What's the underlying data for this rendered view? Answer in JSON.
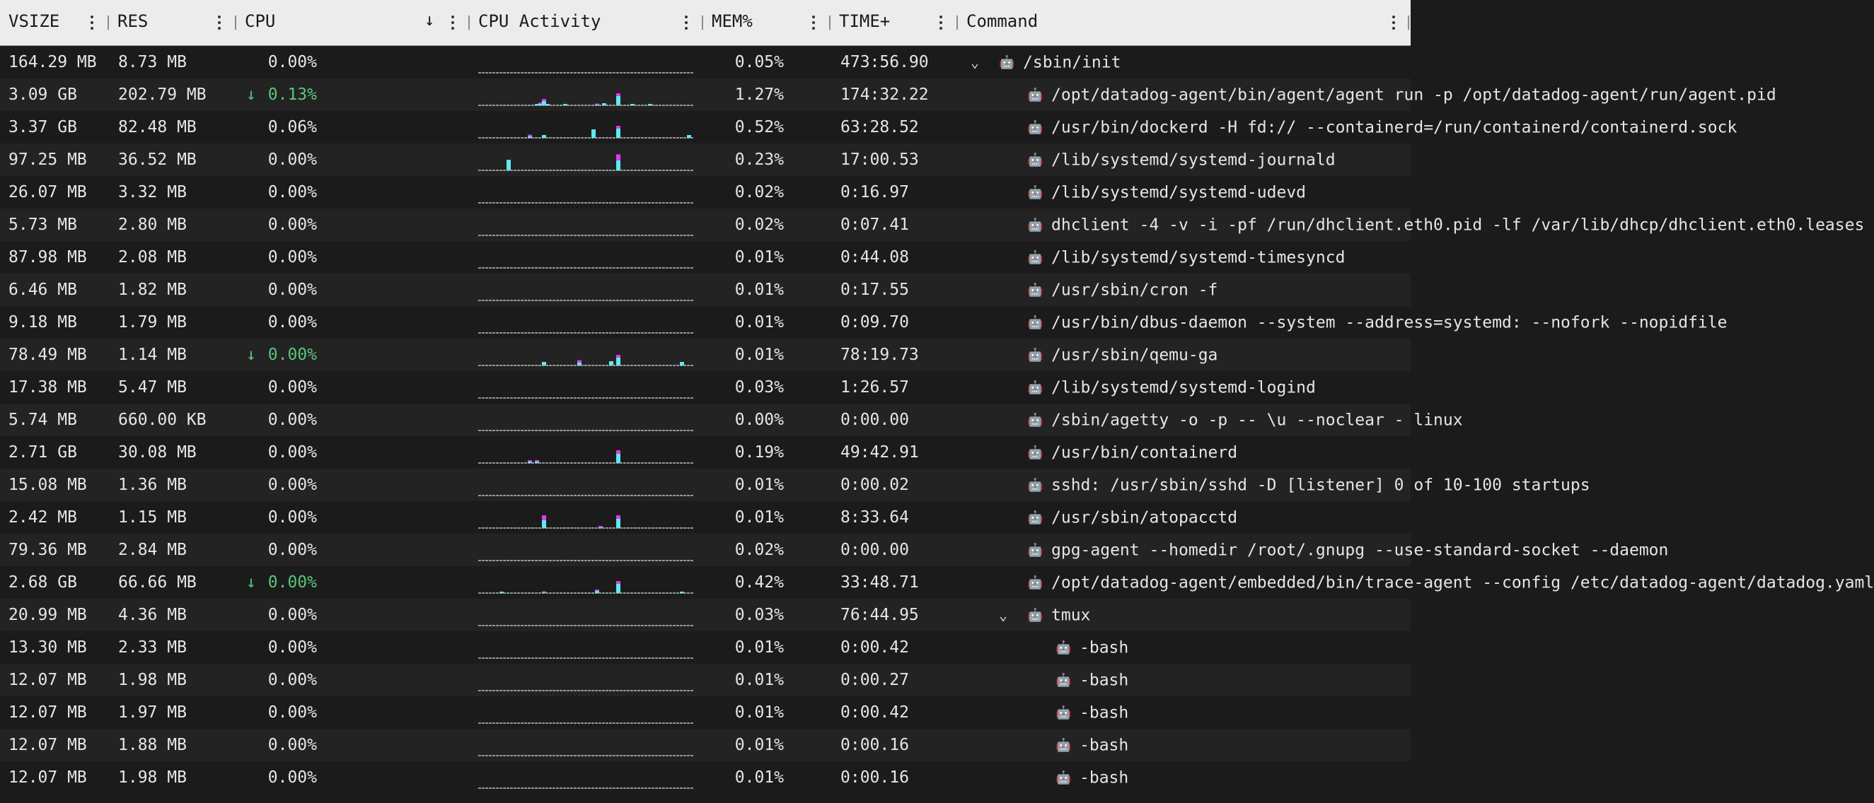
{
  "colors": {
    "cpu_bar": "#5ee9f4",
    "mem_bar": "#e13be8",
    "baseline": "#bdbdbd",
    "trend_green": "#58c77c"
  },
  "icons": {
    "process": "robot-icon",
    "expand": "chevron-down-icon",
    "sort": "arrow-down-icon",
    "column_menu": "kebab-icon"
  },
  "columns": [
    {
      "key": "vsize",
      "label": "VSIZE"
    },
    {
      "key": "res",
      "label": "RES"
    },
    {
      "key": "cpu",
      "label": "CPU",
      "sort": "desc"
    },
    {
      "key": "activity",
      "label": "CPU Activity"
    },
    {
      "key": "mem",
      "label": "MEM%"
    },
    {
      "key": "time",
      "label": "TIME+"
    },
    {
      "key": "command",
      "label": "Command"
    }
  ],
  "rows": [
    {
      "vsize": "164.29 MB",
      "res": "8.73 MB",
      "cpu": "0.00%",
      "mem": "0.05%",
      "time": "473:56.90",
      "command": "/sbin/init",
      "depth": 0,
      "expanded": true,
      "spark": []
    },
    {
      "vsize": "3.09 GB",
      "res": "202.79 MB",
      "cpu": "0.13%",
      "trend": "down",
      "mem": "1.27%",
      "time": "174:32.22",
      "command": "/opt/datadog-agent/bin/agent/agent run -p /opt/datadog-agent/run/agent.pid",
      "depth": 1,
      "spark": [
        [
          16,
          2,
          0
        ],
        [
          17,
          3,
          2
        ],
        [
          18,
          7,
          4
        ],
        [
          19,
          2,
          0
        ],
        [
          24,
          2,
          0
        ],
        [
          33,
          2,
          1
        ],
        [
          35,
          3,
          0
        ],
        [
          39,
          14,
          6
        ],
        [
          43,
          2,
          0
        ],
        [
          48,
          2,
          0
        ]
      ]
    },
    {
      "vsize": "3.37 GB",
      "res": "82.48 MB",
      "cpu": "0.06%",
      "mem": "0.52%",
      "time": "63:28.52",
      "command": "/usr/bin/dockerd -H fd:// --containerd=/run/containerd/containerd.sock",
      "depth": 1,
      "spark": [
        [
          14,
          3,
          3
        ],
        [
          18,
          4,
          0
        ],
        [
          32,
          12,
          0
        ],
        [
          39,
          14,
          6
        ],
        [
          59,
          4,
          0
        ]
      ]
    },
    {
      "vsize": "97.25 MB",
      "res": "36.52 MB",
      "cpu": "0.00%",
      "mem": "0.23%",
      "time": "17:00.53",
      "command": "/lib/systemd/systemd-journald",
      "depth": 1,
      "spark": [
        [
          8,
          15,
          0
        ],
        [
          39,
          15,
          15
        ]
      ]
    },
    {
      "vsize": "26.07 MB",
      "res": "3.32 MB",
      "cpu": "0.00%",
      "mem": "0.02%",
      "time": "0:16.97",
      "command": "/lib/systemd/systemd-udevd",
      "depth": 1,
      "spark": []
    },
    {
      "vsize": "5.73 MB",
      "res": "2.80 MB",
      "cpu": "0.00%",
      "mem": "0.02%",
      "time": "0:07.41",
      "command": "dhclient -4 -v -i -pf /run/dhclient.eth0.pid -lf /var/lib/dhcp/dhclient.eth0.leases",
      "depth": 1,
      "spark": []
    },
    {
      "vsize": "87.98 MB",
      "res": "2.08 MB",
      "cpu": "0.00%",
      "mem": "0.01%",
      "time": "0:44.08",
      "command": "/lib/systemd/systemd-timesyncd",
      "depth": 1,
      "spark": []
    },
    {
      "vsize": "6.46 MB",
      "res": "1.82 MB",
      "cpu": "0.00%",
      "mem": "0.01%",
      "time": "0:17.55",
      "command": "/usr/sbin/cron -f",
      "depth": 1,
      "spark": []
    },
    {
      "vsize": "9.18 MB",
      "res": "1.79 MB",
      "cpu": "0.00%",
      "mem": "0.01%",
      "time": "0:09.70",
      "command": "/usr/bin/dbus-daemon --system --address=systemd: --nofork --nopidfile",
      "depth": 1,
      "spark": []
    },
    {
      "vsize": "78.49 MB",
      "res": "1.14 MB",
      "cpu": "0.00%",
      "trend": "down",
      "mem": "0.01%",
      "time": "78:19.73",
      "command": "/usr/sbin/qemu-ga",
      "depth": 1,
      "spark": [
        [
          18,
          5,
          0
        ],
        [
          28,
          5,
          5
        ],
        [
          37,
          6,
          0
        ],
        [
          39,
          12,
          6
        ],
        [
          57,
          5,
          0
        ]
      ]
    },
    {
      "vsize": "17.38 MB",
      "res": "5.47 MB",
      "cpu": "0.00%",
      "mem": "0.03%",
      "time": "1:26.57",
      "command": "/lib/systemd/systemd-logind",
      "depth": 1,
      "spark": []
    },
    {
      "vsize": "5.74 MB",
      "res": "660.00 KB",
      "cpu": "0.00%",
      "mem": "0.00%",
      "time": "0:00.00",
      "command": "/sbin/agetty -o -p -- \\u --noclear - linux",
      "depth": 1,
      "spark": []
    },
    {
      "vsize": "2.71 GB",
      "res": "30.08 MB",
      "cpu": "0.00%",
      "mem": "0.19%",
      "time": "49:42.91",
      "command": "/usr/bin/containerd",
      "depth": 1,
      "spark": [
        [
          14,
          3,
          2
        ],
        [
          16,
          3,
          2
        ],
        [
          39,
          14,
          8
        ]
      ]
    },
    {
      "vsize": "15.08 MB",
      "res": "1.36 MB",
      "cpu": "0.00%",
      "mem": "0.01%",
      "time": "0:00.02",
      "command": "sshd: /usr/sbin/sshd -D [listener] 0 of 10-100 startups",
      "depth": 1,
      "spark": []
    },
    {
      "vsize": "2.42 MB",
      "res": "1.15 MB",
      "cpu": "0.00%",
      "mem": "0.01%",
      "time": "8:33.64",
      "command": "/usr/sbin/atopacctd",
      "depth": 1,
      "spark": [
        [
          18,
          12,
          12
        ],
        [
          34,
          2,
          2
        ],
        [
          39,
          14,
          8
        ]
      ]
    },
    {
      "vsize": "79.36 MB",
      "res": "2.84 MB",
      "cpu": "0.00%",
      "mem": "0.02%",
      "time": "0:00.00",
      "command": "gpg-agent --homedir /root/.gnupg --use-standard-socket --daemon",
      "depth": 1,
      "spark": []
    },
    {
      "vsize": "2.68 GB",
      "res": "66.66 MB",
      "cpu": "0.00%",
      "trend": "down",
      "mem": "0.42%",
      "time": "33:48.71",
      "command": "/opt/datadog-agent/embedded/bin/trace-agent --config /etc/datadog-agent/datadog.yaml",
      "depth": 1,
      "spark": [
        [
          6,
          2,
          0
        ],
        [
          18,
          2,
          1
        ],
        [
          33,
          4,
          2
        ],
        [
          39,
          14,
          6
        ],
        [
          57,
          2,
          0
        ]
      ]
    },
    {
      "vsize": "20.99 MB",
      "res": "4.36 MB",
      "cpu": "0.00%",
      "mem": "0.03%",
      "time": "76:44.95",
      "command": "tmux",
      "depth": 1,
      "expanded": true,
      "spark": []
    },
    {
      "vsize": "13.30 MB",
      "res": "2.33 MB",
      "cpu": "0.00%",
      "mem": "0.01%",
      "time": "0:00.42",
      "command": "-bash",
      "depth": 2,
      "spark": []
    },
    {
      "vsize": "12.07 MB",
      "res": "1.98 MB",
      "cpu": "0.00%",
      "mem": "0.01%",
      "time": "0:00.27",
      "command": "-bash",
      "depth": 2,
      "spark": []
    },
    {
      "vsize": "12.07 MB",
      "res": "1.97 MB",
      "cpu": "0.00%",
      "mem": "0.01%",
      "time": "0:00.42",
      "command": "-bash",
      "depth": 2,
      "spark": []
    },
    {
      "vsize": "12.07 MB",
      "res": "1.88 MB",
      "cpu": "0.00%",
      "mem": "0.01%",
      "time": "0:00.16",
      "command": "-bash",
      "depth": 2,
      "spark": []
    },
    {
      "vsize": "12.07 MB",
      "res": "1.98 MB",
      "cpu": "0.00%",
      "mem": "0.01%",
      "time": "0:00.16",
      "command": "-bash",
      "depth": 2,
      "spark": []
    }
  ]
}
